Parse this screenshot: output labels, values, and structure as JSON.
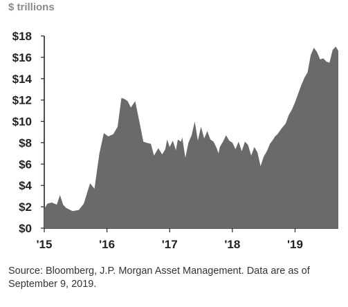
{
  "unit_label": "$ trillions",
  "source_note": "Source: Bloomberg, J.P. Morgan Asset Management. Data are as of September 9, 2019.",
  "colors": {
    "area": "#6a6a6a",
    "axis": "#222222",
    "tick_text": "#222222"
  },
  "chart_data": {
    "type": "area",
    "title": "",
    "xlabel": "",
    "ylabel": "$ trillions",
    "ylim": [
      0,
      18
    ],
    "xlim": [
      2015.0,
      2019.69
    ],
    "y_ticks": [
      0,
      2,
      4,
      6,
      8,
      10,
      12,
      14,
      16,
      18
    ],
    "y_tick_labels": [
      "$0",
      "$2",
      "$4",
      "$6",
      "$8",
      "$10",
      "$12",
      "$14",
      "$16",
      "$18"
    ],
    "x_ticks": [
      2015,
      2016,
      2017,
      2018,
      2019
    ],
    "x_tick_labels": [
      "'15",
      "'16",
      "'17",
      "'18",
      "'19"
    ],
    "grid": false,
    "series": [
      {
        "x": [
          2015.0,
          2015.05,
          2015.12,
          2015.2,
          2015.25,
          2015.3,
          2015.35,
          2015.45,
          2015.55,
          2015.63,
          2015.73,
          2015.8,
          2015.88,
          2015.95,
          2016.02,
          2016.1,
          2016.17,
          2016.23,
          2016.28,
          2016.33,
          2016.38,
          2016.45,
          2016.52,
          2016.58,
          2016.63,
          2016.7,
          2016.75,
          2016.82,
          2016.88,
          2016.93,
          2016.96,
          2017.0,
          2017.05,
          2017.1,
          2017.13,
          2017.18,
          2017.2,
          2017.25,
          2017.3,
          2017.35,
          2017.4,
          2017.45,
          2017.5,
          2017.55,
          2017.6,
          2017.65,
          2017.7,
          2017.75,
          2017.78,
          2017.8,
          2017.85,
          2017.9,
          2017.95,
          2018.0,
          2018.05,
          2018.1,
          2018.15,
          2018.2,
          2018.25,
          2018.3,
          2018.35,
          2018.4,
          2018.45,
          2018.5,
          2018.55,
          2018.6,
          2018.65,
          2018.68,
          2018.72,
          2018.78,
          2018.85,
          2018.9,
          2018.95,
          2019.0,
          2019.05,
          2019.1,
          2019.15,
          2019.2,
          2019.25,
          2019.3,
          2019.35,
          2019.4,
          2019.45,
          2019.5,
          2019.55,
          2019.6,
          2019.65,
          2019.69
        ],
        "values": [
          1.8,
          2.3,
          2.4,
          2.2,
          3.1,
          2.2,
          1.9,
          1.6,
          1.7,
          2.3,
          4.2,
          3.7,
          7.0,
          8.9,
          8.6,
          8.8,
          9.5,
          12.2,
          12.1,
          11.9,
          11.3,
          11.9,
          9.9,
          8.1,
          8.0,
          7.9,
          6.8,
          7.5,
          6.9,
          7.4,
          8.3,
          7.6,
          8.2,
          7.3,
          8.3,
          8.1,
          8.5,
          6.6,
          8.0,
          8.7,
          10.0,
          8.2,
          9.5,
          8.4,
          9.1,
          8.3,
          8.1,
          7.5,
          7.0,
          7.6,
          8.1,
          8.7,
          8.2,
          8.0,
          7.4,
          8.1,
          7.2,
          8.1,
          7.8,
          6.8,
          7.6,
          7.1,
          5.8,
          6.7,
          7.2,
          7.9,
          8.3,
          8.6,
          8.8,
          9.3,
          9.8,
          10.6,
          11.1,
          11.8,
          12.6,
          13.4,
          14.1,
          14.6,
          16.2,
          16.9,
          16.5,
          15.8,
          15.9,
          15.6,
          15.5,
          16.7,
          17.0,
          16.6
        ]
      }
    ]
  }
}
